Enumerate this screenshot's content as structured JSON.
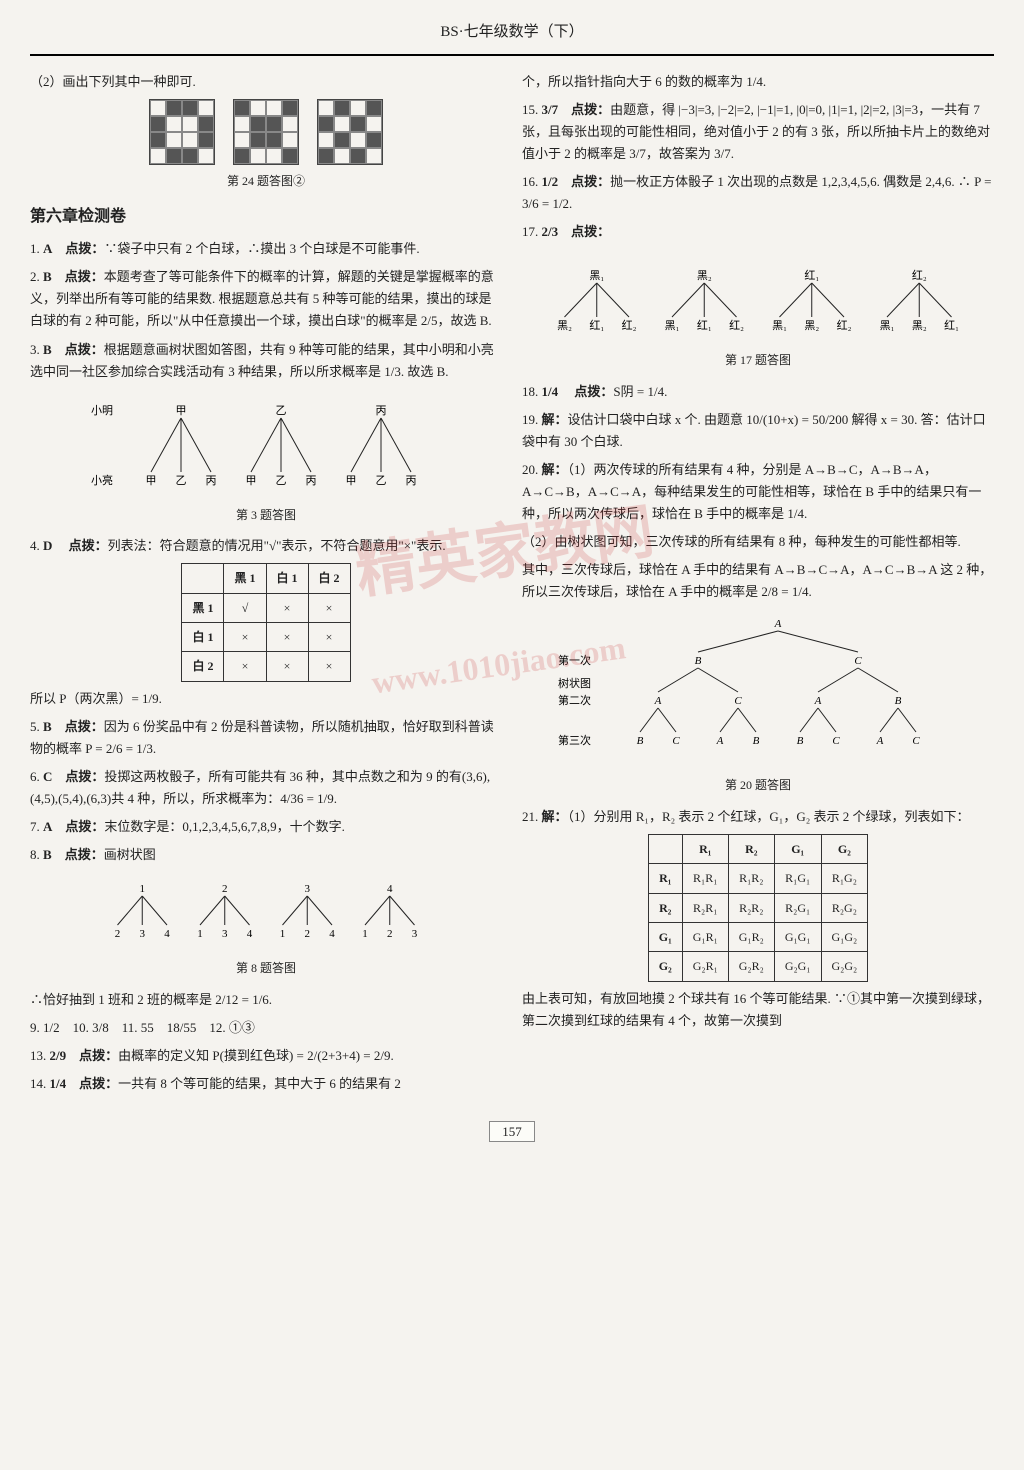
{
  "header": "BS·七年级数学（下）",
  "page_number": "157",
  "watermark_main": "精英家教网",
  "watermark_url": "www.1010jiao.com",
  "left": {
    "q24_intro": "（2）画出下列其中一种即可.",
    "q24_caption": "第 24 题答图②",
    "grids": {
      "a": [
        [
          0,
          1,
          1,
          0
        ],
        [
          1,
          0,
          0,
          1
        ],
        [
          1,
          0,
          0,
          1
        ],
        [
          0,
          1,
          1,
          0
        ]
      ],
      "b": [
        [
          1,
          0,
          0,
          1
        ],
        [
          0,
          1,
          1,
          0
        ],
        [
          0,
          1,
          1,
          0
        ],
        [
          1,
          0,
          0,
          1
        ]
      ],
      "c": [
        [
          0,
          1,
          0,
          1
        ],
        [
          1,
          0,
          1,
          0
        ],
        [
          0,
          1,
          0,
          1
        ],
        [
          1,
          0,
          1,
          0
        ]
      ]
    },
    "section_title": "第六章检测卷",
    "items": [
      {
        "n": "1",
        "ans": "A",
        "label": "点拨：",
        "text": "∵袋子中只有 2 个白球，∴摸出 3 个白球是不可能事件."
      },
      {
        "n": "2",
        "ans": "B",
        "label": "点拨：",
        "text": "本题考查了等可能条件下的概率的计算，解题的关键是掌握概率的意义，列举出所有等可能的结果数. 根据题意总共有 5 种等可能的结果，摸出的球是白球的有 2 种可能，所以\"从中任意摸出一个球，摸出白球\"的概率是 2/5，故选 B."
      },
      {
        "n": "3",
        "ans": "B",
        "label": "点拨：",
        "text": "根据题意画树状图如答图，共有 9 种等可能的结果，其中小明和小亮选中同一社区参加综合实践活动有 3 种结果，所以所求概率是 1/3. 故选 B."
      }
    ],
    "q3_tree": {
      "root_label": "小明",
      "top": [
        "甲",
        "乙",
        "丙"
      ],
      "row_label": "小亮",
      "bottom_sets": [
        [
          "甲",
          "乙",
          "丙"
        ],
        [
          "甲",
          "乙",
          "丙"
        ],
        [
          "甲",
          "乙",
          "丙"
        ]
      ],
      "caption": "第 3 题答图"
    },
    "q4": {
      "n": "4",
      "ans": "D",
      "label": "点拨：",
      "text": "列表法：符合题意的情况用\"√\"表示，不符合题意用\"×\"表示."
    },
    "q4_table": {
      "headers": [
        "",
        "黑 1",
        "白 1",
        "白 2"
      ],
      "rows": [
        [
          "黑 1",
          "√",
          "×",
          "×"
        ],
        [
          "白 1",
          "×",
          "×",
          "×"
        ],
        [
          "白 2",
          "×",
          "×",
          "×"
        ]
      ],
      "footer": "所以 P（两次黑）= 1/9."
    },
    "items2": [
      {
        "n": "5",
        "ans": "B",
        "label": "点拨：",
        "text": "因为 6 份奖品中有 2 份是科普读物，所以随机抽取，恰好取到科普读物的概率 P = 2/6 = 1/3."
      },
      {
        "n": "6",
        "ans": "C",
        "label": "点拨：",
        "text": "投掷这两枚骰子，所有可能共有 36 种，其中点数之和为 9 的有(3,6),(4,5),(5,4),(6,3)共 4 种，所以，所求概率为：4/36 = 1/9."
      },
      {
        "n": "7",
        "ans": "A",
        "label": "点拨：",
        "text": "末位数字是：0,1,2,3,4,5,6,7,8,9，十个数字."
      },
      {
        "n": "8",
        "ans": "B",
        "label": "点拨：",
        "text": "画树状图"
      }
    ],
    "q8_tree": {
      "top": [
        "1",
        "2",
        "3",
        "4"
      ],
      "bottom_sets": [
        [
          "2",
          "3",
          "4"
        ],
        [
          "1",
          "3",
          "4"
        ],
        [
          "1",
          "2",
          "4"
        ],
        [
          "1",
          "2",
          "3"
        ]
      ],
      "caption": "第 8 题答图",
      "footer": "∴恰好抽到 1 班和 2 班的概率是 2/12 = 1/6."
    },
    "short_answers": "9. 1/2　10. 3/8　11. 55　18/55　12. ①③",
    "items3": [
      {
        "n": "13",
        "ans": "2/9",
        "label": "点拨：",
        "text": "由概率的定义知 P(摸到红色球) = 2/(2+3+4) = 2/9."
      },
      {
        "n": "14",
        "ans": "1/4",
        "label": "点拨：",
        "text": "一共有 8 个等可能的结果，其中大于 6 的结果有 2"
      }
    ]
  },
  "right": {
    "cont14": "个，所以指针指向大于 6 的数的概率为 1/4.",
    "items": [
      {
        "n": "15",
        "ans": "3/7",
        "label": "点拨：",
        "text": "由题意，得 |−3|=3, |−2|=2, |−1|=1, |0|=0, |1|=1, |2|=2, |3|=3，一共有 7 张，且每张出现的可能性相同，绝对值小于 2 的有 3 张，所以所抽卡片上的数绝对值小于 2 的概率是 3/7，故答案为 3/7."
      },
      {
        "n": "16",
        "ans": "1/2",
        "label": "点拨：",
        "text": "抛一枚正方体骰子 1 次出现的点数是 1,2,3,4,5,6. 偶数是 2,4,6. ∴ P = 3/6 = 1/2."
      },
      {
        "n": "17",
        "ans": "2/3",
        "label": "点拨：",
        "text": ""
      }
    ],
    "q17_tree": {
      "top": [
        "黑₁",
        "黑₂",
        "红₁",
        "红₂"
      ],
      "bottom_sets": [
        [
          "黑₂",
          "红₁",
          "红₂"
        ],
        [
          "黑₁",
          "红₁",
          "红₂"
        ],
        [
          "黑₁",
          "黑₂",
          "红₂"
        ],
        [
          "黑₁",
          "黑₂",
          "红₁"
        ]
      ],
      "caption": "第 17 题答图"
    },
    "q18": {
      "n": "18",
      "ans": "1/4",
      "label": "点拨：",
      "text": "S阴 = 1/4."
    },
    "q19": {
      "n": "19",
      "label": "解：",
      "text": "设估计口袋中白球 x 个. 由题意 10/(10+x) = 50/200 解得 x = 30. 答：估计口袋中有 30 个白球."
    },
    "q20": {
      "n": "20",
      "label": "解：",
      "part1": "（1）两次传球的所有结果有 4 种，分别是 A→B→C，A→B→A，A→C→B，A→C→A，每种结果发生的可能性相等，球恰在 B 手中的结果只有一种，所以两次传球后，球恰在 B 手中的概率是 1/4.",
      "part2": "（2）由树状图可知，三次传球的所有结果有 8 种，每种发生的可能性都相等.",
      "part3": "其中，三次传球后，球恰在 A 手中的结果有 A→B→C→A，A→C→B→A 这 2 种，所以三次传球后，球恰在 A 手中的概率是 2/8 = 1/4."
    },
    "q20_tree": {
      "col_label": "树状图",
      "row_labels": [
        "第一次",
        "第二次",
        "第三次"
      ],
      "root": "A",
      "level1": [
        "B",
        "C"
      ],
      "level2": [
        [
          "A",
          "C"
        ],
        [
          "A",
          "B"
        ]
      ],
      "level3": [
        [
          "B",
          "C"
        ],
        [
          "A",
          "B"
        ],
        [
          "B",
          "C"
        ],
        [
          "A",
          "C"
        ]
      ],
      "caption": "第 20 题答图"
    },
    "q21": {
      "n": "21",
      "label": "解：",
      "intro": "（1）分别用 R₁，R₂ 表示 2 个红球，G₁，G₂ 表示 2 个绿球，列表如下：",
      "table": {
        "headers": [
          "",
          "R₁",
          "R₂",
          "G₁",
          "G₂"
        ],
        "rows": [
          [
            "R₁",
            "R₁R₁",
            "R₁R₂",
            "R₁G₁",
            "R₁G₂"
          ],
          [
            "R₂",
            "R₂R₁",
            "R₂R₂",
            "R₂G₁",
            "R₂G₂"
          ],
          [
            "G₁",
            "G₁R₁",
            "G₁R₂",
            "G₁G₁",
            "G₁G₂"
          ],
          [
            "G₂",
            "G₂R₁",
            "G₂R₂",
            "G₂G₁",
            "G₂G₂"
          ]
        ]
      },
      "footer": "由上表可知，有放回地摸 2 个球共有 16 个等可能结果. ∵①其中第一次摸到绿球，第二次摸到红球的结果有 4 个，故第一次摸到"
    }
  }
}
